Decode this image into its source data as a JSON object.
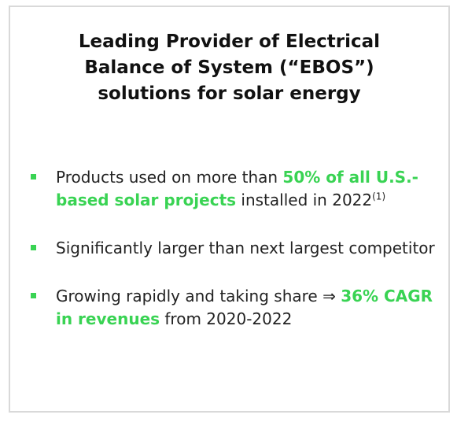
{
  "title": {
    "line1": "Leading Provider of Electrical",
    "line2": "Balance of System (“EBOS”)",
    "line3": "solutions for solar energy"
  },
  "bullets": [
    {
      "text_before": "Products used on more than ",
      "highlight": "50% of all U.S.-based solar projects",
      "text_after": " installed in 2022",
      "footnote": "(1)"
    },
    {
      "text_before": "Significantly larger than next largest competitor"
    },
    {
      "text_before": "Growing rapidly and taking share ⇒ ",
      "highlight": "36% CAGR in revenues",
      "text_after": " from 2020-2022"
    }
  ],
  "colors": {
    "accent": "#39d353",
    "text": "#222222",
    "border": "#d9d9d9"
  }
}
